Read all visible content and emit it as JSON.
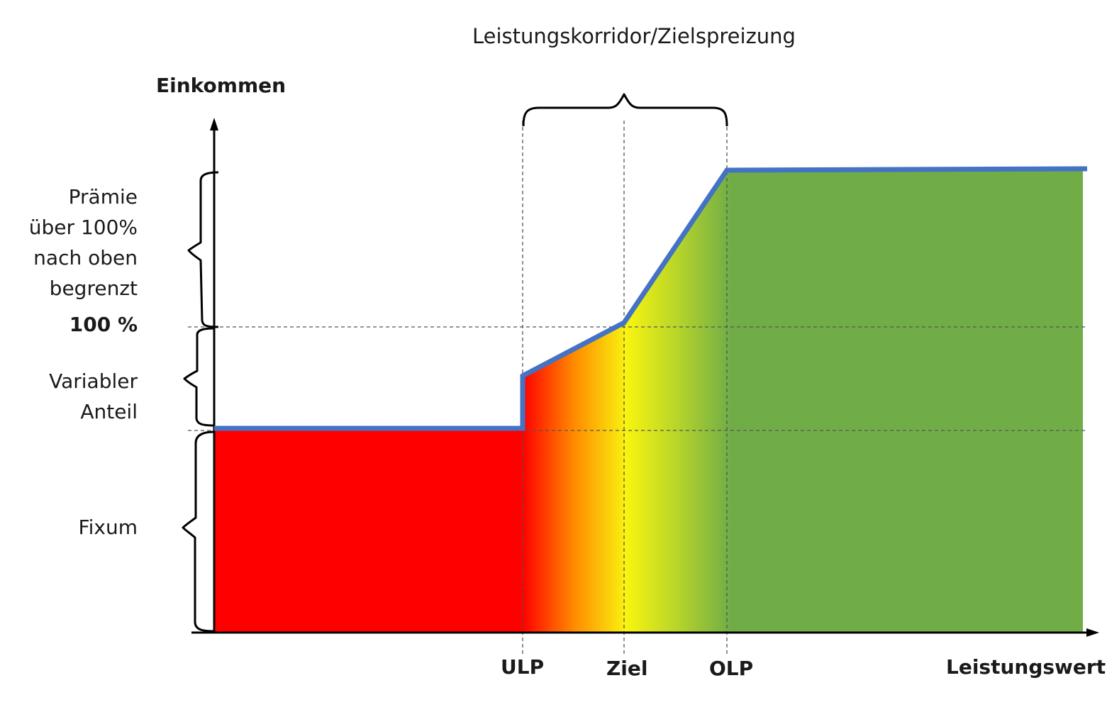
{
  "title": "Leistungskorridor/Zielspreizung",
  "y_axis_label": "Einkommen",
  "x_axis_label": "Leistungswert",
  "y_segments": {
    "praemie": [
      "Prämie",
      "über 100%",
      "nach oben",
      "begrenzt"
    ],
    "hundred": "100 %",
    "variabel": [
      "Variabler",
      "Anteil"
    ],
    "fixum": "Fixum"
  },
  "x_markers": {
    "ulp": "ULP",
    "ziel": "Ziel",
    "olp": "OLP"
  },
  "colors": {
    "line": "#4472c4",
    "red": "#ff0000",
    "yellow": "#f4f416",
    "green": "#70ad47"
  }
}
